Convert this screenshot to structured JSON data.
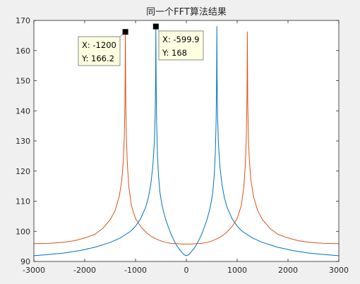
{
  "chart_data": {
    "type": "line",
    "title": "同一个FFT算法结果",
    "xlabel": "",
    "ylabel": "",
    "xlim": [
      -3000,
      3000
    ],
    "ylim": [
      90,
      170
    ],
    "x_ticks": [
      "-3000",
      "-2000",
      "-1000",
      "0",
      "1000",
      "2000",
      "3000"
    ],
    "y_ticks": [
      "90",
      "100",
      "110",
      "120",
      "130",
      "140",
      "150",
      "160",
      "170"
    ],
    "grid": false,
    "legend": "none",
    "series": [
      {
        "color": "#0072BD",
        "peaks": [
          -599.9,
          599.9
        ],
        "x": [
          -3000,
          -2700,
          -2400,
          -2100,
          -1800,
          -1500,
          -1300,
          -1100,
          -1000,
          -900,
          -800,
          -750,
          -700,
          -660,
          -630,
          -615,
          -605,
          -599.9,
          -595,
          -585,
          -570,
          -550,
          -520,
          -480,
          -440,
          -400,
          -350,
          -300,
          -250,
          -200,
          -150,
          -100,
          -50,
          0,
          50,
          100,
          150,
          200,
          250,
          300,
          350,
          400,
          440,
          480,
          520,
          550,
          570,
          585,
          595,
          599.9,
          605,
          615,
          630,
          660,
          700,
          750,
          800,
          900,
          1000,
          1100,
          1300,
          1500,
          1800,
          2100,
          2400,
          2700,
          3000
        ],
        "y": [
          91.9,
          92.3,
          92.8,
          93.6,
          94.7,
          96.3,
          97.8,
          100.0,
          101.7,
          104.2,
          108.0,
          111.0,
          115.6,
          121.5,
          129.5,
          138.0,
          150.0,
          168.0,
          150.0,
          136.0,
          126.0,
          119.0,
          113.0,
          108.8,
          106.0,
          103.6,
          101.2,
          99.0,
          97.2,
          95.6,
          94.3,
          93.3,
          92.3,
          91.9,
          92.3,
          93.3,
          94.3,
          95.6,
          97.2,
          99.0,
          101.2,
          103.6,
          106.0,
          108.8,
          113.0,
          119.0,
          126.0,
          136.0,
          150.0,
          168.0,
          150.0,
          138.0,
          129.5,
          121.5,
          115.6,
          111.0,
          108.0,
          104.2,
          101.7,
          100.0,
          97.8,
          96.3,
          94.7,
          93.6,
          92.8,
          92.3,
          91.9
        ]
      },
      {
        "color": "#D95319",
        "peaks": [
          -1200,
          1200
        ],
        "x": [
          -3000,
          -2700,
          -2400,
          -2200,
          -2000,
          -1800,
          -1650,
          -1500,
          -1400,
          -1320,
          -1270,
          -1240,
          -1220,
          -1208,
          -1200,
          -1192,
          -1180,
          -1160,
          -1130,
          -1080,
          -1000,
          -900,
          -800,
          -700,
          -600,
          -500,
          -400,
          -300,
          -200,
          -100,
          0,
          100,
          200,
          300,
          400,
          500,
          600,
          700,
          800,
          900,
          1000,
          1080,
          1130,
          1160,
          1180,
          1192,
          1200,
          1208,
          1220,
          1240,
          1270,
          1320,
          1400,
          1500,
          1650,
          1800,
          2000,
          2200,
          2400,
          2700,
          3000
        ],
        "y": [
          95.9,
          96.0,
          96.4,
          96.9,
          97.8,
          99.0,
          100.9,
          103.8,
          107.0,
          111.6,
          117.0,
          123.5,
          131.5,
          143.0,
          166.2,
          143.0,
          131.0,
          122.0,
          114.5,
          108.5,
          104.2,
          101.6,
          99.8,
          98.4,
          97.5,
          96.8,
          96.3,
          96.0,
          95.9,
          95.8,
          95.8,
          95.8,
          95.9,
          96.0,
          96.3,
          96.8,
          97.5,
          98.4,
          99.8,
          101.6,
          104.2,
          108.5,
          114.5,
          122.0,
          131.0,
          143.0,
          166.2,
          143.0,
          131.5,
          123.5,
          117.0,
          111.6,
          107.0,
          103.8,
          100.9,
          99.0,
          97.8,
          96.9,
          96.4,
          96.0,
          95.9
        ]
      }
    ],
    "annotations": [
      {
        "x": -1200,
        "y": 166.2,
        "x_text": "X: -1200",
        "y_text": "Y: 166.2"
      },
      {
        "x": -599.9,
        "y": 168,
        "x_text": "X: -599.9",
        "y_text": "Y: 168"
      }
    ]
  }
}
